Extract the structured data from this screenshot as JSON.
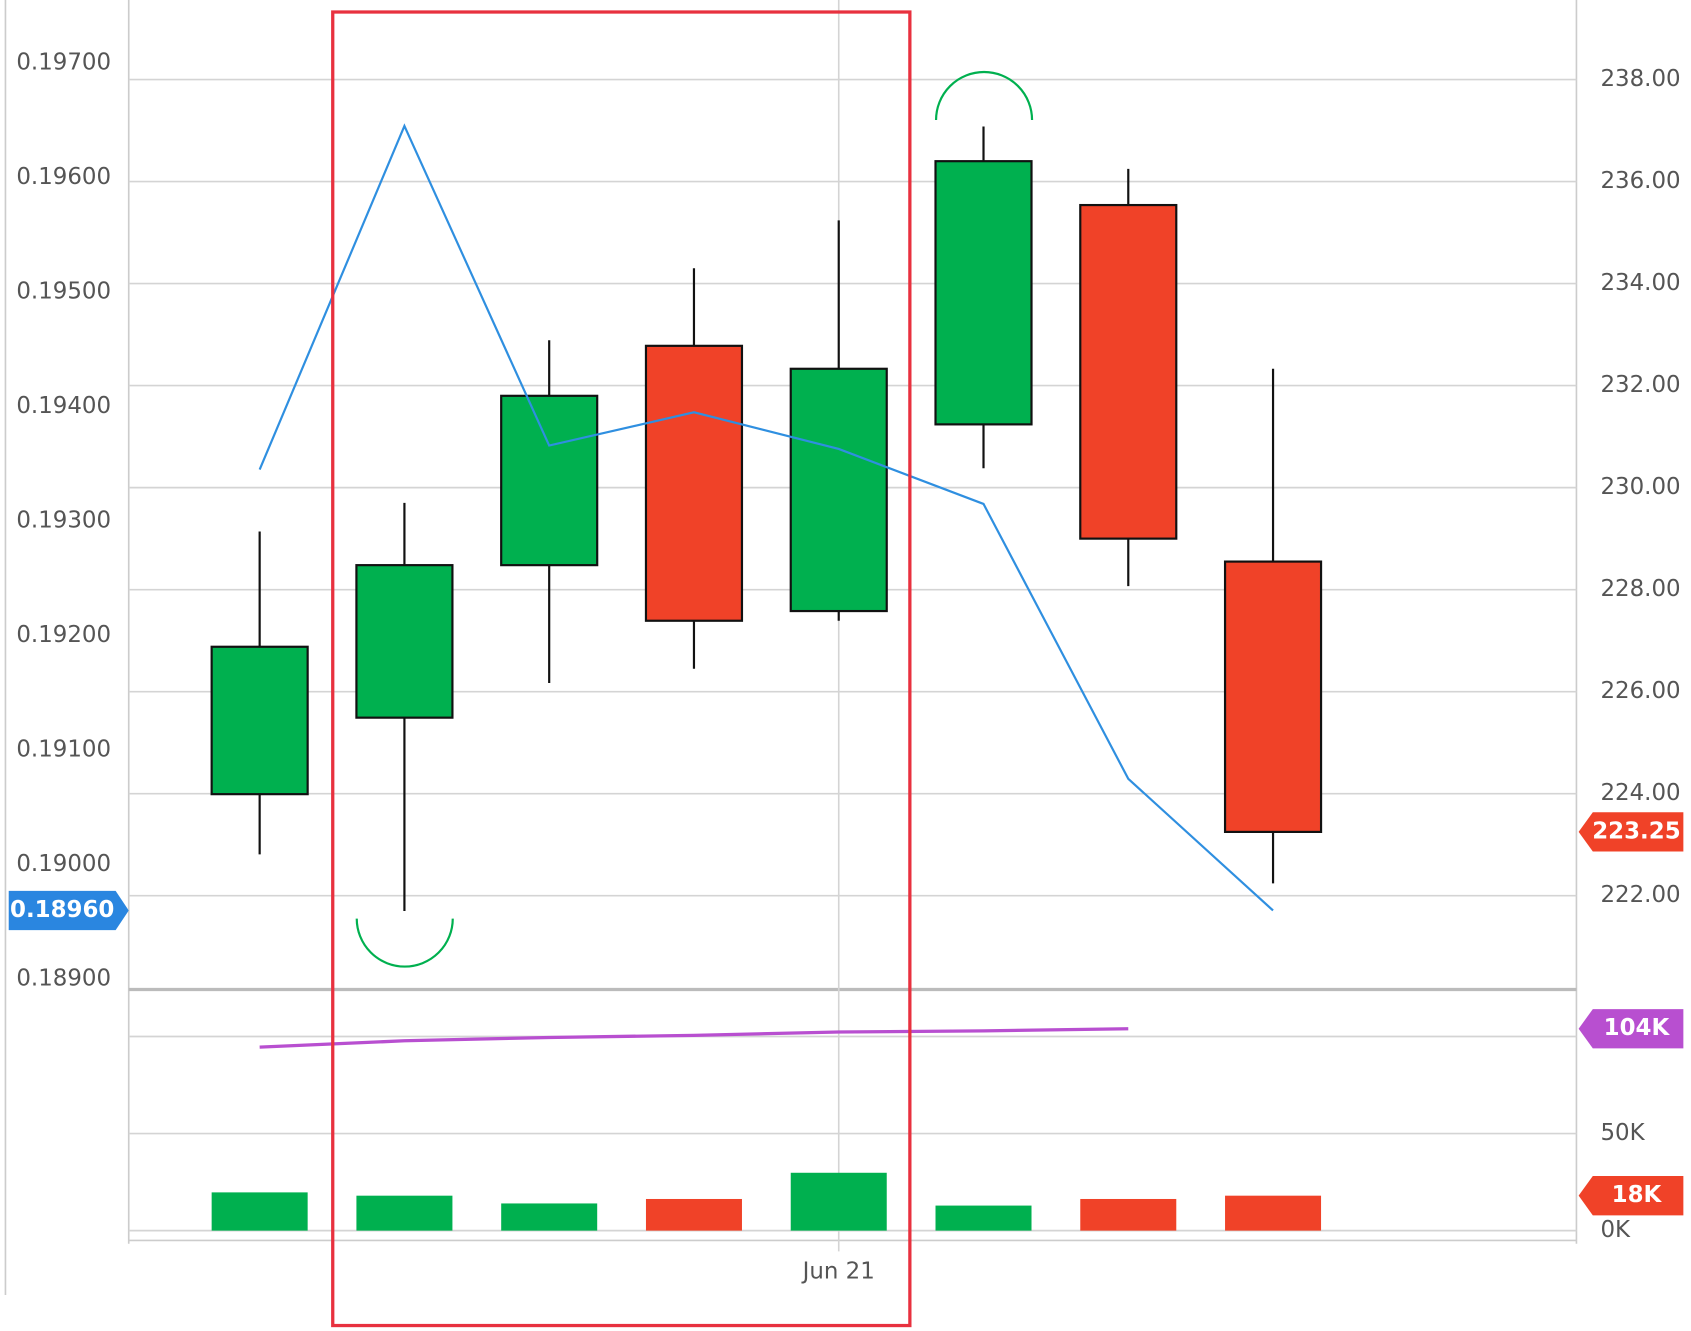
{
  "chart_data": {
    "type": "candlestick",
    "categories": [
      null,
      null,
      null,
      null,
      "Jun 21",
      null,
      null,
      null
    ],
    "open": [
      223.99,
      225.49,
      228.48,
      232.78,
      227.58,
      231.24,
      235.54,
      228.55
    ],
    "high": [
      229.14,
      229.7,
      232.89,
      234.3,
      235.24,
      237.08,
      236.25,
      232.33
    ],
    "low": [
      222.81,
      221.7,
      226.17,
      226.45,
      227.39,
      230.38,
      228.07,
      222.24
    ],
    "close": [
      226.88,
      228.48,
      231.8,
      227.39,
      232.33,
      236.4,
      229.0,
      223.25
    ],
    "up_color": "#00b04f",
    "down_color": "#f04228",
    "ylim": [
      220.16,
      239.56
    ],
    "yticks": [
      {
        "value": 222,
        "label": "222.00"
      },
      {
        "value": 224,
        "label": "224.00"
      },
      {
        "value": 226,
        "label": "226.00"
      },
      {
        "value": 228,
        "label": "228.00"
      },
      {
        "value": 230,
        "label": "230.00"
      },
      {
        "value": 232,
        "label": "232.00"
      },
      {
        "value": 234,
        "label": "234.00"
      },
      {
        "value": 236,
        "label": "236.00"
      },
      {
        "value": 238,
        "label": "238.00"
      }
    ],
    "y2lim": [
      0.18891,
      0.19755
    ],
    "y2ticks": [
      {
        "value": 0.189,
        "label": "0.18900"
      },
      {
        "value": 0.19,
        "label": "0.19000"
      },
      {
        "value": 0.191,
        "label": "0.19100"
      },
      {
        "value": 0.192,
        "label": "0.19200"
      },
      {
        "value": 0.193,
        "label": "0.19300"
      },
      {
        "value": 0.194,
        "label": "0.19400"
      },
      {
        "value": 0.195,
        "label": "0.19500"
      },
      {
        "value": 0.196,
        "label": "0.19600"
      },
      {
        "value": 0.197,
        "label": "0.19700"
      }
    ],
    "line": {
      "axis": "y2",
      "color": "#2f8fe0",
      "values": [
        0.19345,
        0.19645,
        0.19366,
        0.19395,
        0.19363,
        0.19315,
        0.19075,
        0.1896
      ],
      "value_labels": [
        null,
        null,
        null,
        null,
        null,
        null,
        null,
        "0.18960"
      ]
    },
    "volume": {
      "values": [
        19.7,
        18.0,
        14.0,
        16.3,
        29.8,
        12.9,
        16.3,
        18
      ],
      "value_labels": [
        null,
        null,
        null,
        null,
        null,
        null,
        null,
        "18K"
      ],
      "ylim": [
        0,
        124.2
      ],
      "yticks": [
        {
          "value": 0,
          "label": "0K"
        },
        {
          "value": 50,
          "label": "50K"
        },
        {
          "value": 100,
          "label": null
        }
      ],
      "ma": {
        "color": "#b84fd0",
        "values": [
          94.5,
          97.8,
          99.5,
          100.6,
          102.3,
          102.9,
          104
        ],
        "value_labels": [
          null,
          null,
          null,
          null,
          null,
          null,
          "104K"
        ]
      }
    }
  }
}
